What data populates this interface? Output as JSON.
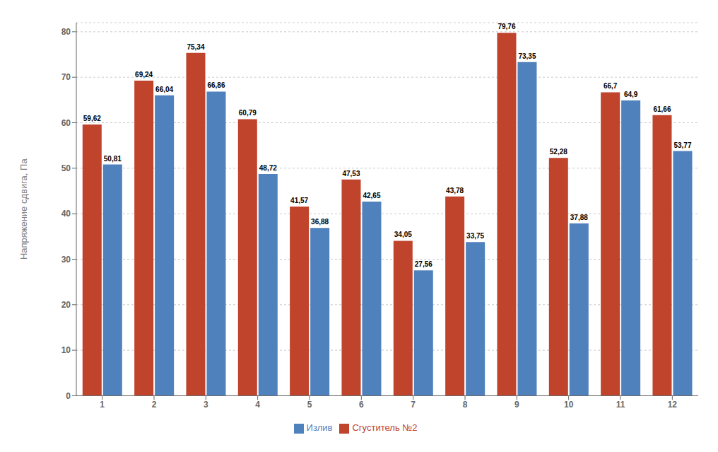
{
  "chart_data": {
    "type": "bar",
    "categories": [
      "1",
      "2",
      "3",
      "4",
      "5",
      "6",
      "7",
      "8",
      "9",
      "10",
      "11",
      "12"
    ],
    "series": [
      {
        "name": "Сгуститель №2",
        "color": "#C0432C",
        "values": [
          59.62,
          69.24,
          75.34,
          60.79,
          41.57,
          47.53,
          34.05,
          43.78,
          79.76,
          52.28,
          66.7,
          61.66
        ],
        "value_labels": [
          "59,62",
          "69,24",
          "75,34",
          "60,79",
          "41,57",
          "47,53",
          "34,05",
          "43,78",
          "79,76",
          "52,28",
          "66,7",
          "61,66"
        ]
      },
      {
        "name": "Излив",
        "color": "#4F81BD",
        "values": [
          50.81,
          66.04,
          66.86,
          48.72,
          36.88,
          42.65,
          27.56,
          33.75,
          73.35,
          37.88,
          64.9,
          53.77
        ],
        "value_labels": [
          "50,81",
          "66,04",
          "66,86",
          "48,72",
          "36,88",
          "42,65",
          "27,56",
          "33,75",
          "73,35",
          "37,88",
          "64,9",
          "53,77"
        ]
      }
    ],
    "ylabel": "Напряжение сдвига, Па",
    "ylim": [
      0,
      82
    ],
    "yticks": [
      0,
      10,
      20,
      30,
      40,
      50,
      60,
      70,
      80
    ],
    "grid": true,
    "legend": "bottom",
    "data_labels": true
  }
}
